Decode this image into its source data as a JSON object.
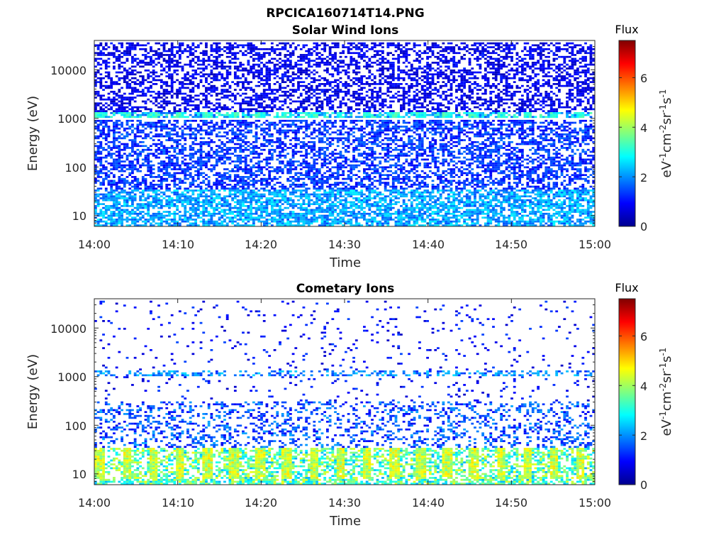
{
  "figure": {
    "title": "RPCICA160714T14.PNG"
  },
  "panels": [
    {
      "title": "Solar Wind Ions",
      "xlabel": "Time",
      "ylabel": "Energy (eV)",
      "xticks": [
        "14:00",
        "14:10",
        "14:20",
        "14:30",
        "14:40",
        "14:50",
        "15:00"
      ],
      "yticks": [
        "10",
        "100",
        "1000",
        "10000"
      ],
      "colorbar": {
        "label": "Flux",
        "units": "eV",
        "ticks": [
          "0",
          "2",
          "4",
          "6"
        ]
      }
    },
    {
      "title": "Cometary Ions",
      "xlabel": "Time",
      "ylabel": "Energy (eV)",
      "xticks": [
        "14:00",
        "14:10",
        "14:20",
        "14:30",
        "14:40",
        "14:50",
        "15:00"
      ],
      "yticks": [
        "10",
        "100",
        "1000",
        "10000"
      ],
      "colorbar": {
        "label": "Flux",
        "units": "eV",
        "ticks": [
          "0",
          "2",
          "4",
          "6"
        ]
      }
    }
  ],
  "chart_data": [
    {
      "type": "heatmap",
      "title": "Solar Wind Ions",
      "xlabel": "Time",
      "ylabel": "Energy (eV)",
      "x_range": [
        "14:00",
        "15:00"
      ],
      "y_scale": "log",
      "y_range": [
        6,
        40000
      ],
      "color_range": [
        0,
        7.5
      ],
      "colormap": "jet",
      "xticks": [
        "14:00",
        "14:10",
        "14:20",
        "14:30",
        "14:40",
        "14:50",
        "15:00"
      ],
      "yticks": [
        10,
        100,
        1000,
        10000
      ],
      "bands": [
        {
          "energy_range": [
            6,
            35
          ],
          "flux_range": [
            1.5,
            2.8
          ],
          "fill_fraction": 0.7
        },
        {
          "energy_range": [
            35,
            900
          ],
          "flux_range": [
            0.8,
            1.8
          ],
          "fill_fraction": 0.55
        },
        {
          "energy_range": [
            1000,
            1350
          ],
          "flux_range": [
            1.5,
            3.5
          ],
          "fill_fraction": 0.85
        },
        {
          "energy_range": [
            1350,
            38000
          ],
          "flux_range": [
            0.4,
            1.2
          ],
          "fill_fraction": 0.5
        }
      ],
      "periodic_feature": {
        "energy_range": [
          1000,
          1350
        ],
        "flux": 3.2,
        "period_minutes": 3.2
      }
    },
    {
      "type": "heatmap",
      "title": "Cometary Ions",
      "xlabel": "Time",
      "ylabel": "Energy (eV)",
      "x_range": [
        "14:00",
        "15:00"
      ],
      "y_scale": "log",
      "y_range": [
        6,
        40000
      ],
      "color_range": [
        0,
        7.5
      ],
      "colormap": "jet",
      "xticks": [
        "14:00",
        "14:10",
        "14:20",
        "14:30",
        "14:40",
        "14:50",
        "15:00"
      ],
      "yticks": [
        10,
        100,
        1000,
        10000
      ],
      "bands": [
        {
          "energy_range": [
            6,
            35
          ],
          "flux_range": [
            2.2,
            4.6
          ],
          "fill_fraction": 0.75
        },
        {
          "energy_range": [
            35,
            300
          ],
          "flux_range": [
            0.8,
            2.2
          ],
          "fill_fraction": 0.3
        },
        {
          "energy_range": [
            1000,
            1350
          ],
          "flux_range": [
            1.2,
            2.6
          ],
          "fill_fraction": 0.45
        },
        {
          "energy_range": [
            300,
            38000
          ],
          "flux_range": [
            0.5,
            1.5
          ],
          "fill_fraction": 0.05
        }
      ],
      "periodic_feature": {
        "energy_range": [
          8,
          35
        ],
        "flux": 4.5,
        "period_minutes": 3.2
      }
    }
  ]
}
